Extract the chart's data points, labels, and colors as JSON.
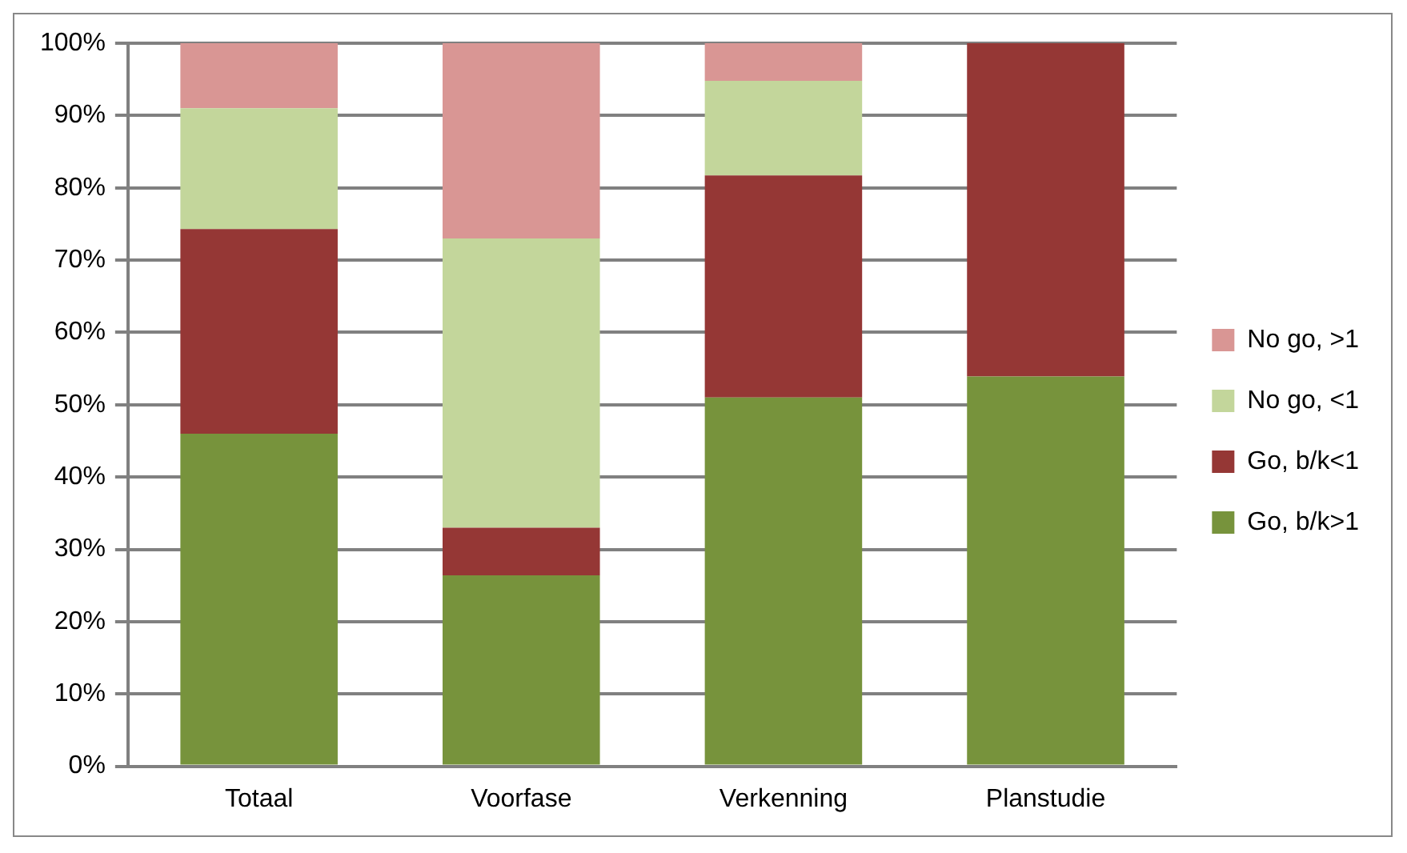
{
  "chart_data": {
    "type": "bar",
    "stacked": true,
    "categories": [
      "Totaal",
      "Voorfase",
      "Verkenning",
      "Planstudie"
    ],
    "series": [
      {
        "name": "Go, b/k>1",
        "color": "#77933c",
        "values": [
          46,
          26.4,
          51,
          53.9
        ]
      },
      {
        "name": "Go, b/k<1",
        "color": "#953735",
        "values": [
          28.3,
          6.6,
          30.7,
          46.1
        ]
      },
      {
        "name": "No go, <1",
        "color": "#c3d69b",
        "values": [
          16.7,
          40,
          13.1,
          0
        ]
      },
      {
        "name": "No go, >1",
        "color": "#d99694",
        "values": [
          9,
          27,
          5.2,
          0
        ]
      }
    ],
    "ylim": [
      0,
      100
    ],
    "yticks": [
      {
        "value": 0,
        "label": "0%"
      },
      {
        "value": 10,
        "label": "10%"
      },
      {
        "value": 20,
        "label": "20%"
      },
      {
        "value": 30,
        "label": "30%"
      },
      {
        "value": 40,
        "label": "40%"
      },
      {
        "value": 50,
        "label": "50%"
      },
      {
        "value": 60,
        "label": "60%"
      },
      {
        "value": 70,
        "label": "70%"
      },
      {
        "value": 80,
        "label": "80%"
      },
      {
        "value": 90,
        "label": "90%"
      },
      {
        "value": 100,
        "label": "100%"
      }
    ],
    "grid": "y",
    "legend": "right"
  }
}
